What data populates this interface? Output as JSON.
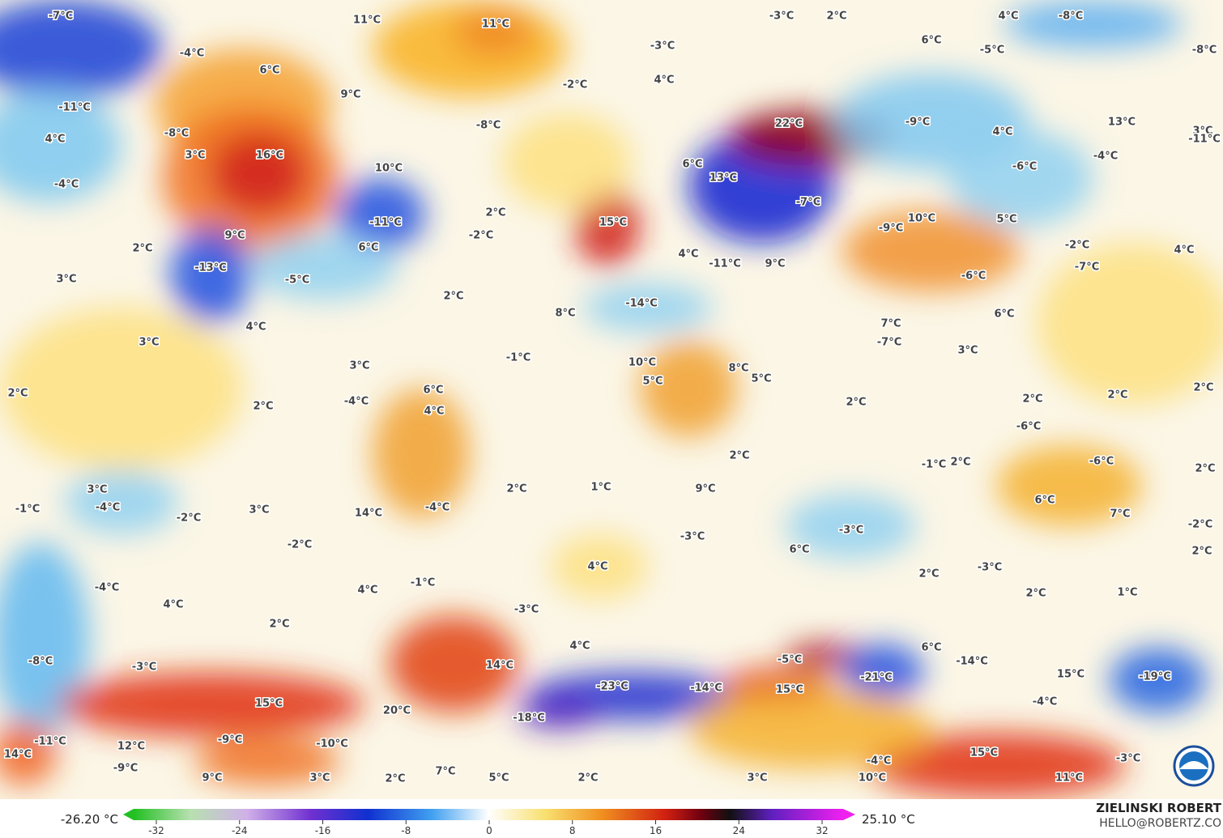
{
  "map": {
    "labels": [
      "-7°C",
      "11°C",
      "11°C",
      "-3°C",
      "2°C",
      "4°C",
      "-8°C",
      "-4°C",
      "6°C",
      "-3°C",
      "6°C",
      "-5°C",
      "-8°C",
      "4°C",
      "-2°C",
      "9°C",
      "-11°C",
      "-8°C",
      "-8°C",
      "4°C",
      "-9°C",
      "22°C",
      "4°C",
      "13°C",
      "3°C",
      "-11°C",
      "3°C",
      "16°C",
      "-4°C",
      "-6°C",
      "6°C",
      "10°C",
      "-4°C",
      "13°C",
      "-7°C",
      "2°C",
      "15°C",
      "-11°C",
      "-2°C",
      "10°C",
      "5°C",
      "-9°C",
      "2°C",
      "9°C",
      "6°C",
      "-2°C",
      "4°C",
      "4°C",
      "-11°C",
      "9°C",
      "-7°C",
      "-13°C",
      "3°C",
      "-5°C",
      "-6°C",
      "2°C",
      "-14°C",
      "6°C",
      "8°C",
      "4°C",
      "7°C",
      "-7°C",
      "3°C",
      "-1°C",
      "10°C",
      "8°C",
      "5°C",
      "3°C",
      "3°C",
      "5°C",
      "6°C",
      "2°C",
      "2°C",
      "2°C",
      "-4°C",
      "4°C",
      "2°C",
      "2°C",
      "2°C",
      "-6°C",
      "2°C",
      "-6°C",
      "-1°C",
      "2°C",
      "2°C",
      "2°C",
      "1°C",
      "3°C",
      "-4°C",
      "-1°C",
      "3°C",
      "-2°C",
      "14°C",
      "-4°C",
      "9°C",
      "6°C",
      "7°C",
      "-3°C",
      "-3°C",
      "-2°C",
      "-2°C",
      "6°C",
      "2°C",
      "4°C",
      "-3°C",
      "2°C",
      "-1°C",
      "-4°C",
      "4°C",
      "2°C",
      "1°C",
      "-3°C",
      "4°C",
      "2°C",
      "4°C",
      "6°C",
      "-5°C",
      "-8°C",
      "-3°C",
      "14°C",
      "-14°C",
      "15°C",
      "-19°C",
      "-21°C",
      "-23°C",
      "-14°C",
      "15°C",
      "15°C",
      "20°C",
      "-4°C",
      "-18°C",
      "-11°C",
      "-9°C",
      "-10°C",
      "12°C",
      "14°C",
      "-9°C",
      "7°C",
      "15°C",
      "-4°C",
      "-3°C",
      "9°C",
      "3°C",
      "2°C",
      "5°C",
      "2°C",
      "3°C",
      "10°C",
      "11°C"
    ]
  },
  "legend": {
    "min_label": "-26.20 °C",
    "max_label": "25.10 °C",
    "ticks": [
      -32,
      -24,
      -16,
      -8,
      0,
      8,
      16,
      24,
      32
    ]
  },
  "credit": {
    "name": "ZIELINSKI ROBERT",
    "email": "HELLO@ROBERTZ.CO"
  }
}
